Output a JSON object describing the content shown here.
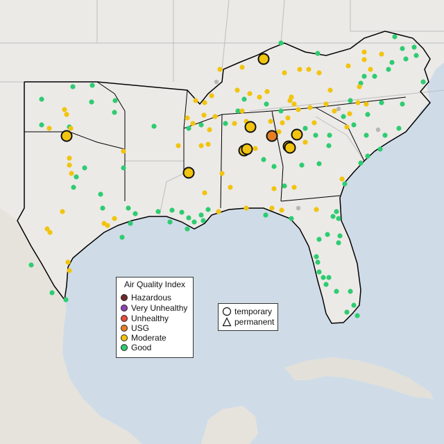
{
  "colors": {
    "ocean": "#cfdce8",
    "land_us": "#eceae7",
    "land_mexico": "#e6e3dd",
    "land_cuba": "#e3e0da",
    "border": "#000000",
    "state_line": "#bdbdbd",
    "hazardous": "#6e2a2a",
    "very_unhealthy": "#8e44ad",
    "unhealthy": "#e74c3c",
    "usg": "#e67e22",
    "moderate": "#f1c40f",
    "good": "#2ecc71",
    "gray_station": "#b7b7b7"
  },
  "legend_aqi": {
    "title": "Air Quality Index",
    "items": [
      {
        "label": "Hazardous",
        "color": "#6e2a2a"
      },
      {
        "label": "Very Unhealthy",
        "color": "#8e44ad"
      },
      {
        "label": "Unhealthy",
        "color": "#e74c3c"
      },
      {
        "label": "USG",
        "color": "#e67e22"
      },
      {
        "label": "Moderate",
        "color": "#f1c40f"
      },
      {
        "label": "Good",
        "color": "#2ecc71"
      }
    ]
  },
  "legend_monitor": {
    "items": [
      {
        "label": "temporary",
        "shape": "circle-icon"
      },
      {
        "label": "permanent",
        "shape": "triangle-icon"
      }
    ]
  }
}
